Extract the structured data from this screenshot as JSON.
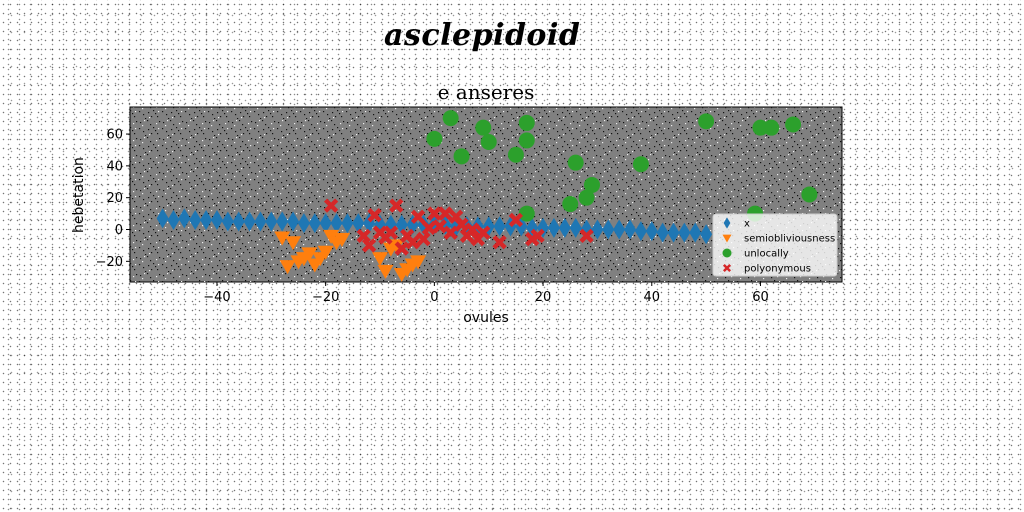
{
  "title": "asclepidoid",
  "chart_data": {
    "type": "scatter",
    "title": "e anseres",
    "xlabel": "ovules",
    "ylabel": "hebetation",
    "xlim": [
      -56,
      75
    ],
    "ylim": [
      -33,
      77
    ],
    "xticks": [
      -40,
      -20,
      0,
      20,
      40,
      60
    ],
    "yticks": [
      -20,
      0,
      20,
      40,
      60
    ],
    "plot_background": "#808080",
    "legend_position": "lower-right",
    "series": [
      {
        "name": "x",
        "marker": "diamond",
        "color": "#1f77b4",
        "x": [
          -50,
          -48,
          -46,
          -44,
          -42,
          -40,
          -38,
          -36,
          -34,
          -32,
          -30,
          -28,
          -26,
          -24,
          -22,
          -20,
          -18,
          -16,
          -14,
          -12,
          -10,
          -8,
          -6,
          -4,
          -2,
          0,
          2,
          4,
          6,
          8,
          10,
          12,
          14,
          16,
          18,
          20,
          22,
          24,
          26,
          28,
          30,
          32,
          34,
          36,
          38,
          40,
          42,
          44,
          46,
          48,
          50
        ],
        "y": [
          7,
          6,
          7,
          6,
          6,
          6,
          5,
          5,
          5,
          5,
          5,
          5,
          5,
          4,
          4,
          4,
          4,
          4,
          4,
          4,
          3,
          3,
          3,
          3,
          3,
          3,
          3,
          2,
          2,
          2,
          2,
          2,
          2,
          2,
          1,
          1,
          1,
          1,
          1,
          0,
          0,
          0,
          0,
          0,
          -1,
          -1,
          -2,
          -2,
          -2,
          -2,
          -3
        ]
      },
      {
        "name": "semiobliviousness",
        "marker": "triangle-down",
        "color": "#ff7f0e",
        "x": [
          -28,
          -27,
          -26,
          -25,
          -24,
          -23,
          -22,
          -21,
          -20,
          -19,
          -18,
          -17,
          -10,
          -9,
          -8,
          -7,
          -6,
          -5,
          -4,
          -3
        ],
        "y": [
          -5,
          -23,
          -8,
          -20,
          -18,
          -15,
          -22,
          -18,
          -14,
          -4,
          -8,
          -6,
          -18,
          -26,
          -12,
          -10,
          -28,
          -25,
          -22,
          -20
        ]
      },
      {
        "name": "unlocally",
        "marker": "circle",
        "color": "#2ca02c",
        "x": [
          0,
          3,
          5,
          9,
          10,
          15,
          17,
          17,
          17,
          25,
          26,
          28,
          29,
          38,
          50,
          60,
          62,
          66,
          69,
          59
        ],
        "y": [
          57,
          70,
          46,
          64,
          55,
          47,
          67,
          56,
          10,
          16,
          42,
          20,
          28,
          41,
          68,
          64,
          64,
          66,
          22,
          10
        ]
      },
      {
        "name": "polyonymous",
        "marker": "x",
        "color": "#d62728",
        "x": [
          -19,
          -13,
          -12,
          -11,
          -10,
          -9,
          -8,
          -7,
          -6,
          -5,
          -4,
          -3,
          -2,
          -1,
          0,
          1,
          2,
          3,
          4,
          5,
          6,
          7,
          8,
          9,
          12,
          15,
          18,
          19,
          28
        ],
        "y": [
          15,
          -4,
          -10,
          9,
          -2,
          -5,
          -2,
          15,
          -12,
          -4,
          -8,
          8,
          -6,
          1,
          10,
          2,
          10,
          -2,
          8,
          3,
          -4,
          0,
          -6,
          -2,
          -8,
          6,
          -6,
          -4,
          -4
        ]
      }
    ]
  }
}
